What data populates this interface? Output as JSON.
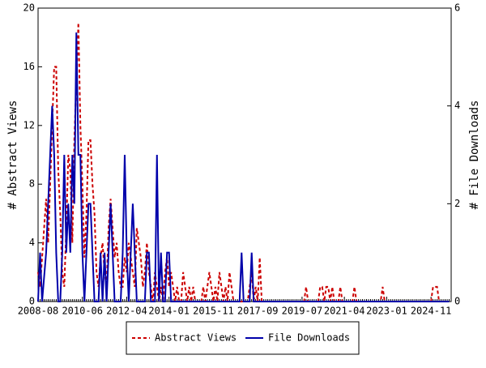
{
  "chart_data": {
    "type": "line",
    "y_label": "# Abstract Views",
    "y2_label": "# File Downloads",
    "categories": [
      "2008-08",
      null,
      null,
      null,
      null,
      null,
      null,
      null,
      null,
      null,
      null,
      null,
      null,
      null,
      null,
      null,
      null,
      null,
      null,
      null,
      null,
      null,
      "2010-06",
      null,
      null,
      null,
      null,
      null,
      null,
      null,
      null,
      null,
      null,
      null,
      null,
      null,
      null,
      null,
      null,
      null,
      null,
      null,
      null,
      null,
      "2012-04",
      null,
      null,
      null,
      null,
      null,
      null,
      null,
      null,
      null,
      null,
      null,
      null,
      null,
      null,
      null,
      null,
      null,
      null,
      null,
      null,
      "2014-01",
      null,
      null,
      null,
      null,
      null,
      null,
      null,
      null,
      null,
      null,
      null,
      null,
      null,
      null,
      null,
      null,
      null,
      null,
      null,
      null,
      null,
      "2015-11",
      null,
      null,
      null,
      null,
      null,
      null,
      null,
      null,
      null,
      null,
      null,
      null,
      null,
      null,
      null,
      null,
      null,
      null,
      null,
      null,
      null,
      "2017-09",
      null,
      null,
      null,
      null,
      null,
      null,
      null,
      null,
      null,
      null,
      null,
      null,
      null,
      null,
      null,
      null,
      null,
      null,
      null,
      null,
      null,
      "2019-07",
      null,
      null,
      null,
      null,
      null,
      null,
      null,
      null,
      null,
      null,
      null,
      null,
      null,
      null,
      null,
      null,
      null,
      null,
      null,
      null,
      "2021-04",
      null,
      null,
      null,
      null,
      null,
      null,
      null,
      null,
      null,
      null,
      null,
      null,
      null,
      null,
      null,
      null,
      null,
      null,
      null,
      null,
      "2023-01",
      null,
      null,
      null,
      null,
      null,
      null,
      null,
      null,
      null,
      null,
      null,
      null,
      null,
      null,
      null,
      null,
      null,
      null,
      null,
      null,
      null,
      "2024-11",
      null,
      null,
      null,
      null,
      null,
      null,
      null,
      null,
      null
    ],
    "series": [
      {
        "name": "Abstract Views",
        "color": "#cc0000",
        "style": "dashed",
        "values": [
          2,
          1,
          3,
          5,
          7,
          4,
          8,
          12,
          16,
          16,
          9,
          6,
          2,
          1,
          5,
          10,
          9,
          4,
          11,
          15,
          19,
          12,
          8,
          3,
          6,
          11,
          11,
          8,
          6,
          2,
          1,
          3,
          4,
          2,
          1,
          5,
          7,
          5,
          3,
          4,
          2,
          1,
          1,
          3,
          2,
          4,
          3,
          2,
          1,
          5,
          4,
          3,
          1,
          2,
          4,
          2,
          1,
          0,
          2,
          1,
          0,
          1,
          0,
          2,
          3,
          1,
          2,
          1,
          0,
          1,
          0,
          0,
          2,
          1,
          0,
          1,
          0,
          1,
          0,
          0,
          0,
          0,
          1,
          0,
          1,
          2,
          1,
          0,
          1,
          0,
          2,
          1,
          0,
          1,
          0,
          2,
          1,
          0,
          0,
          0,
          0,
          0,
          0,
          0,
          0,
          1,
          2,
          0,
          1,
          0,
          3,
          0,
          0,
          0,
          0,
          0,
          0,
          0,
          0,
          0,
          0,
          0,
          0,
          0,
          0,
          0,
          0,
          0,
          0,
          0,
          0,
          0,
          0,
          1,
          0,
          0,
          0,
          0,
          0,
          0,
          1,
          1,
          0,
          1,
          1,
          0,
          1,
          0,
          0,
          0,
          1,
          0,
          0,
          0,
          0,
          0,
          0,
          1,
          0,
          0,
          0,
          0,
          0,
          0,
          0,
          0,
          0,
          0,
          0,
          0,
          0,
          1,
          0,
          0,
          0,
          0,
          0,
          0,
          0,
          0,
          0,
          0,
          0,
          0,
          0,
          0,
          0,
          0,
          0,
          0,
          0,
          0,
          0,
          0,
          0,
          0,
          1,
          1,
          1,
          0,
          0,
          0,
          0,
          0,
          0
        ]
      },
      {
        "name": "File Downloads",
        "color": "#0000aa",
        "style": "solid",
        "axis": "y2",
        "values": [
          0,
          1,
          0,
          0.5,
          1,
          2,
          3,
          4,
          3,
          1,
          0,
          0,
          1,
          3,
          1,
          2,
          1,
          3,
          2,
          5.5,
          3,
          3,
          1,
          0,
          1,
          2,
          2,
          1,
          0,
          0,
          0,
          1,
          0,
          1,
          0,
          1,
          2,
          1,
          0,
          0,
          0,
          0,
          1,
          3,
          1,
          0,
          1,
          2,
          1,
          0,
          0,
          0,
          0,
          0,
          1,
          1,
          0,
          0,
          0,
          3,
          0,
          1,
          0,
          0,
          1,
          1,
          0,
          0,
          0,
          0,
          0,
          0,
          0,
          0,
          0,
          0,
          0,
          0,
          0,
          0,
          0,
          0,
          0,
          0,
          0,
          0,
          0,
          0,
          0,
          0,
          0,
          0,
          0,
          0,
          0,
          0,
          0,
          0,
          0,
          0,
          0,
          1,
          0,
          0,
          0,
          0,
          1,
          0,
          0,
          0,
          0,
          0,
          0,
          0,
          0,
          0,
          0,
          0,
          0,
          0,
          0,
          0,
          0,
          0,
          0,
          0,
          0,
          0,
          0,
          0,
          0,
          0,
          0,
          0,
          0,
          0,
          0,
          0,
          0,
          0,
          0,
          0,
          0,
          0,
          0,
          0,
          0,
          0,
          0,
          0,
          0,
          0,
          0,
          0,
          0,
          0,
          0,
          0,
          0,
          0,
          0,
          0,
          0,
          0,
          0,
          0,
          0,
          0,
          0,
          0,
          0,
          0,
          0,
          0,
          0,
          0,
          0,
          0,
          0,
          0,
          0,
          0,
          0,
          0,
          0,
          0,
          0,
          0,
          0,
          0,
          0,
          0,
          0,
          0,
          0,
          0,
          0,
          0,
          0,
          0,
          0,
          0,
          0,
          0,
          0
        ]
      }
    ],
    "ylim": [
      0,
      20
    ],
    "yticks": [
      0,
      4,
      8,
      12,
      16,
      20
    ],
    "y2lim": [
      0,
      6
    ],
    "y2ticks": [
      0,
      2,
      4,
      6
    ]
  }
}
